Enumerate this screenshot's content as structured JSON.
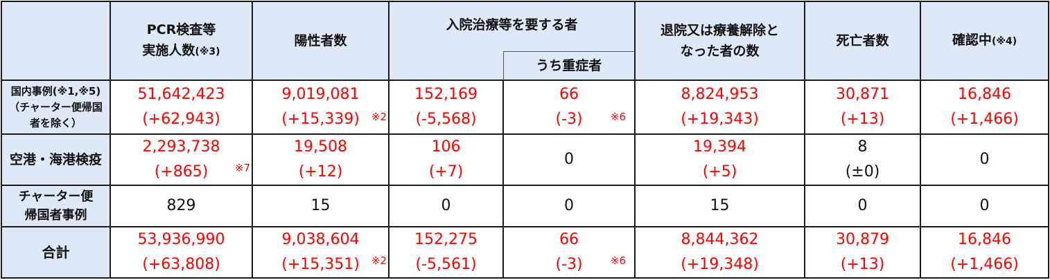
{
  "colors": {
    "header_bg": "#dde9f6",
    "highlight": "#ff0000",
    "text": "#111111"
  },
  "headers": {
    "pcr_line1": "PCR検査等",
    "pcr_line2": "実施人数",
    "pcr_note": "(※3)",
    "positive": "陽性者数",
    "hospital": "入院治療等を要する者",
    "severe": "うち重症者",
    "discharged_line1": "退院又は療養解除と",
    "discharged_line2": "なった者の数",
    "deaths": "死亡者数",
    "confirming": "確認中",
    "confirming_note": "(※4)"
  },
  "rows": [
    {
      "label_lines": [
        "国内事例(※1,※5)",
        "（チャーター便帰国",
        "者を除く）"
      ],
      "pcr": [
        "51,642,423",
        "(+62,943)"
      ],
      "positive": [
        "9,019,081",
        "(+15,339)"
      ],
      "positive_note": "※2",
      "hospital": [
        "152,169",
        "(-5,568)"
      ],
      "severe": [
        "66",
        "(-3)"
      ],
      "severe_note": "※6",
      "discharged": [
        "8,824,953",
        "(+19,343)"
      ],
      "deaths": [
        "30,871",
        "(+13)"
      ],
      "confirming": [
        "16,846",
        "(+1,466)"
      ]
    },
    {
      "label_lines": [
        "空港・海港検疫"
      ],
      "pcr": [
        "2,293,738",
        "(+865)"
      ],
      "pcr_note": "※7",
      "positive": [
        "19,508",
        "(+12)"
      ],
      "hospital": [
        "106",
        "(+7)"
      ],
      "severe": [
        "0"
      ],
      "discharged": [
        "19,394",
        "(+5)"
      ],
      "deaths": [
        "8",
        "(±0)"
      ],
      "confirming": [
        "0"
      ]
    },
    {
      "label_lines": [
        "チャーター便",
        "帰国者事例"
      ],
      "pcr": [
        "829"
      ],
      "positive": [
        "15"
      ],
      "hospital": [
        "0"
      ],
      "severe": [
        "0"
      ],
      "discharged": [
        "15"
      ],
      "deaths": [
        "0"
      ],
      "confirming": [
        "0"
      ]
    },
    {
      "label_lines": [
        "合計"
      ],
      "pcr": [
        "53,936,990",
        "(+63,808)"
      ],
      "positive": [
        "9,038,604",
        "(+15,351)"
      ],
      "positive_note": "※2",
      "hospital": [
        "152,275",
        "(-5,561)"
      ],
      "severe": [
        "66",
        "(-3)"
      ],
      "severe_note": "※6",
      "discharged": [
        "8,844,362",
        "(+19,348)"
      ],
      "deaths": [
        "30,879",
        "(+13)"
      ],
      "confirming": [
        "16,846",
        "(+1,466)"
      ]
    }
  ]
}
